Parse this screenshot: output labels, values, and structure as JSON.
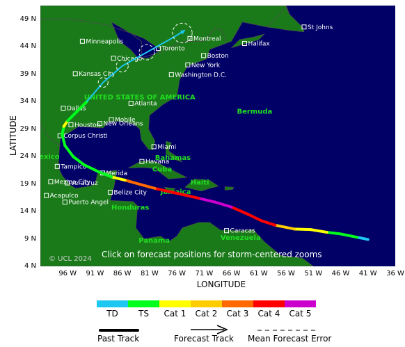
{
  "map": {
    "copyright": "© UCL 2024",
    "instruction": "Click on forecast positions for storm-centered zooms",
    "colors": {
      "ocean": "#000066",
      "land": "#1a7a1a",
      "border": "#4c4c4c",
      "city_text": "#ffffff",
      "region_text": "#22dd22"
    },
    "lat_labels": [
      "49 N",
      "44 N",
      "39 N",
      "34 N",
      "29 N",
      "24 N",
      "19 N",
      "14 N",
      "9 N",
      "4 N"
    ],
    "lon_labels": [
      "96 W",
      "91 W",
      "86 W",
      "81 W",
      "76 W",
      "71 W",
      "66 W",
      "61 W",
      "56 W",
      "51 W",
      "46 W",
      "41 W",
      "36 W"
    ],
    "axis_title_x": "LONGITUDE",
    "axis_title_y": "LATITUDE",
    "cities": [
      {
        "name": "St Johns",
        "lat": 47.6,
        "lon": -52.7
      },
      {
        "name": "Montreal",
        "lat": 45.5,
        "lon": -73.6
      },
      {
        "name": "Minneapolis",
        "lat": 45.0,
        "lon": -93.3
      },
      {
        "name": "Halifax",
        "lat": 44.6,
        "lon": -63.6
      },
      {
        "name": "Toronto",
        "lat": 43.7,
        "lon": -79.4
      },
      {
        "name": "Boston",
        "lat": 42.4,
        "lon": -71.1
      },
      {
        "name": "Chicago",
        "lat": 41.9,
        "lon": -87.6
      },
      {
        "name": "New York",
        "lat": 40.7,
        "lon": -74.0
      },
      {
        "name": "Kansas City",
        "lat": 39.1,
        "lon": -94.6
      },
      {
        "name": "Washington D.C.",
        "lat": 38.9,
        "lon": -77.0
      },
      {
        "name": "Atlanta",
        "lat": 33.7,
        "lon": -84.4
      },
      {
        "name": "Dallas",
        "lat": 32.8,
        "lon": -96.8
      },
      {
        "name": "New Orleans",
        "lat": 30.0,
        "lon": -90.1
      },
      {
        "name": "Mobile",
        "lat": 30.7,
        "lon": -88.0
      },
      {
        "name": "Houston",
        "lat": 29.8,
        "lon": -95.4
      },
      {
        "name": "Corpus Christi",
        "lat": 27.8,
        "lon": -97.4
      },
      {
        "name": "Miami",
        "lat": 25.8,
        "lon": -80.2
      },
      {
        "name": "Havana",
        "lat": 23.1,
        "lon": -82.4
      },
      {
        "name": "Tampico",
        "lat": 22.2,
        "lon": -97.9
      },
      {
        "name": "Merida",
        "lat": 21.0,
        "lon": -89.6
      },
      {
        "name": "Mexico City",
        "lat": 19.4,
        "lon": -99.1
      },
      {
        "name": "Veracruz",
        "lat": 19.2,
        "lon": -96.1
      },
      {
        "name": "Belize City",
        "lat": 17.5,
        "lon": -88.2
      },
      {
        "name": "Acapulco",
        "lat": 16.9,
        "lon": -99.9
      },
      {
        "name": "Puerto Angel",
        "lat": 15.7,
        "lon": -96.5
      },
      {
        "name": "Caracas",
        "lat": 10.5,
        "lon": -66.9
      }
    ],
    "regions": [
      "UNITED STATES OF AMERICA",
      "Bermuda",
      "Bahamas",
      "Cuba",
      "Jamaica",
      "Haiti",
      "Honduras",
      "Venezuela",
      "Panama",
      "Mexico"
    ],
    "past_track": [
      {
        "lat": 8.9,
        "lon": -41.0,
        "cat": "TD"
      },
      {
        "lat": 9.3,
        "lon": -43.0,
        "cat": "TS"
      },
      {
        "lat": 9.9,
        "lon": -46.0,
        "cat": "TS"
      },
      {
        "lat": 10.2,
        "lon": -48.5,
        "cat": "Cat 1"
      },
      {
        "lat": 10.7,
        "lon": -51.5,
        "cat": "Cat 1"
      },
      {
        "lat": 10.8,
        "lon": -54.5,
        "cat": "Cat 2"
      },
      {
        "lat": 11.5,
        "lon": -58.0,
        "cat": "Cat 4"
      },
      {
        "lat": 12.3,
        "lon": -60.5,
        "cat": "Cat 4"
      },
      {
        "lat": 13.5,
        "lon": -63.0,
        "cat": "Cat 4"
      },
      {
        "lat": 14.8,
        "lon": -66.0,
        "cat": "Cat 5"
      },
      {
        "lat": 15.7,
        "lon": -69.0,
        "cat": "Cat 5"
      },
      {
        "lat": 16.4,
        "lon": -72.0,
        "cat": "Cat 4"
      },
      {
        "lat": 17.3,
        "lon": -76.0,
        "cat": "Cat 4"
      },
      {
        "lat": 18.2,
        "lon": -80.0,
        "cat": "Cat 3"
      },
      {
        "lat": 19.0,
        "lon": -83.0,
        "cat": "Cat 3"
      },
      {
        "lat": 19.7,
        "lon": -85.5,
        "cat": "Cat 1"
      },
      {
        "lat": 20.3,
        "lon": -88.0,
        "cat": "TS"
      },
      {
        "lat": 21.3,
        "lon": -90.5,
        "cat": "TS"
      },
      {
        "lat": 22.5,
        "lon": -93.0,
        "cat": "TS"
      },
      {
        "lat": 24.0,
        "lon": -95.0,
        "cat": "TS"
      },
      {
        "lat": 26.0,
        "lon": -96.5,
        "cat": "TS"
      },
      {
        "lat": 28.0,
        "lon": -97.0,
        "cat": "TS"
      },
      {
        "lat": 29.5,
        "lon": -96.7,
        "cat": "Cat 1"
      },
      {
        "lat": 30.5,
        "lon": -96.0,
        "cat": "TS"
      },
      {
        "lat": 32.0,
        "lon": -94.5,
        "cat": "TS"
      },
      {
        "lat": 34.0,
        "lon": -92.5,
        "cat": "TS"
      }
    ],
    "forecast_track": [
      {
        "lat": 34.0,
        "lon": -92.5,
        "cat": "TD"
      },
      {
        "lat": 37.5,
        "lon": -89.5,
        "cat": "TD"
      },
      {
        "lat": 40.5,
        "lon": -86.0,
        "cat": "TD"
      },
      {
        "lat": 43.0,
        "lon": -81.5,
        "cat": "TD"
      },
      {
        "lat": 45.5,
        "lon": -77.0,
        "cat": "TD"
      },
      {
        "lat": 47.0,
        "lon": -74.5,
        "cat": "TD"
      }
    ],
    "forecast_error_circles": [
      {
        "lat": 37.5,
        "lon": -89.5,
        "radius_deg": 0.9
      },
      {
        "lat": 40.5,
        "lon": -86.0,
        "radius_deg": 1.1
      },
      {
        "lat": 43.0,
        "lon": -81.5,
        "radius_deg": 1.4
      },
      {
        "lat": 46.5,
        "lon": -75.0,
        "radius_deg": 1.8
      }
    ]
  },
  "legend": {
    "categories": [
      {
        "label": "TD",
        "color": "#1cc7f2"
      },
      {
        "label": "TS",
        "color": "#00ff1c"
      },
      {
        "label": "Cat 1",
        "color": "#ffff00"
      },
      {
        "label": "Cat 2",
        "color": "#ffcc00"
      },
      {
        "label": "Cat 3",
        "color": "#ff6a00"
      },
      {
        "label": "Cat 4",
        "color": "#ff0000"
      },
      {
        "label": "Cat 5",
        "color": "#cc00cc"
      }
    ],
    "past_track_label": "Past Track",
    "forecast_track_label": "Forecast Track",
    "error_label": "Mean Forecast Error"
  }
}
